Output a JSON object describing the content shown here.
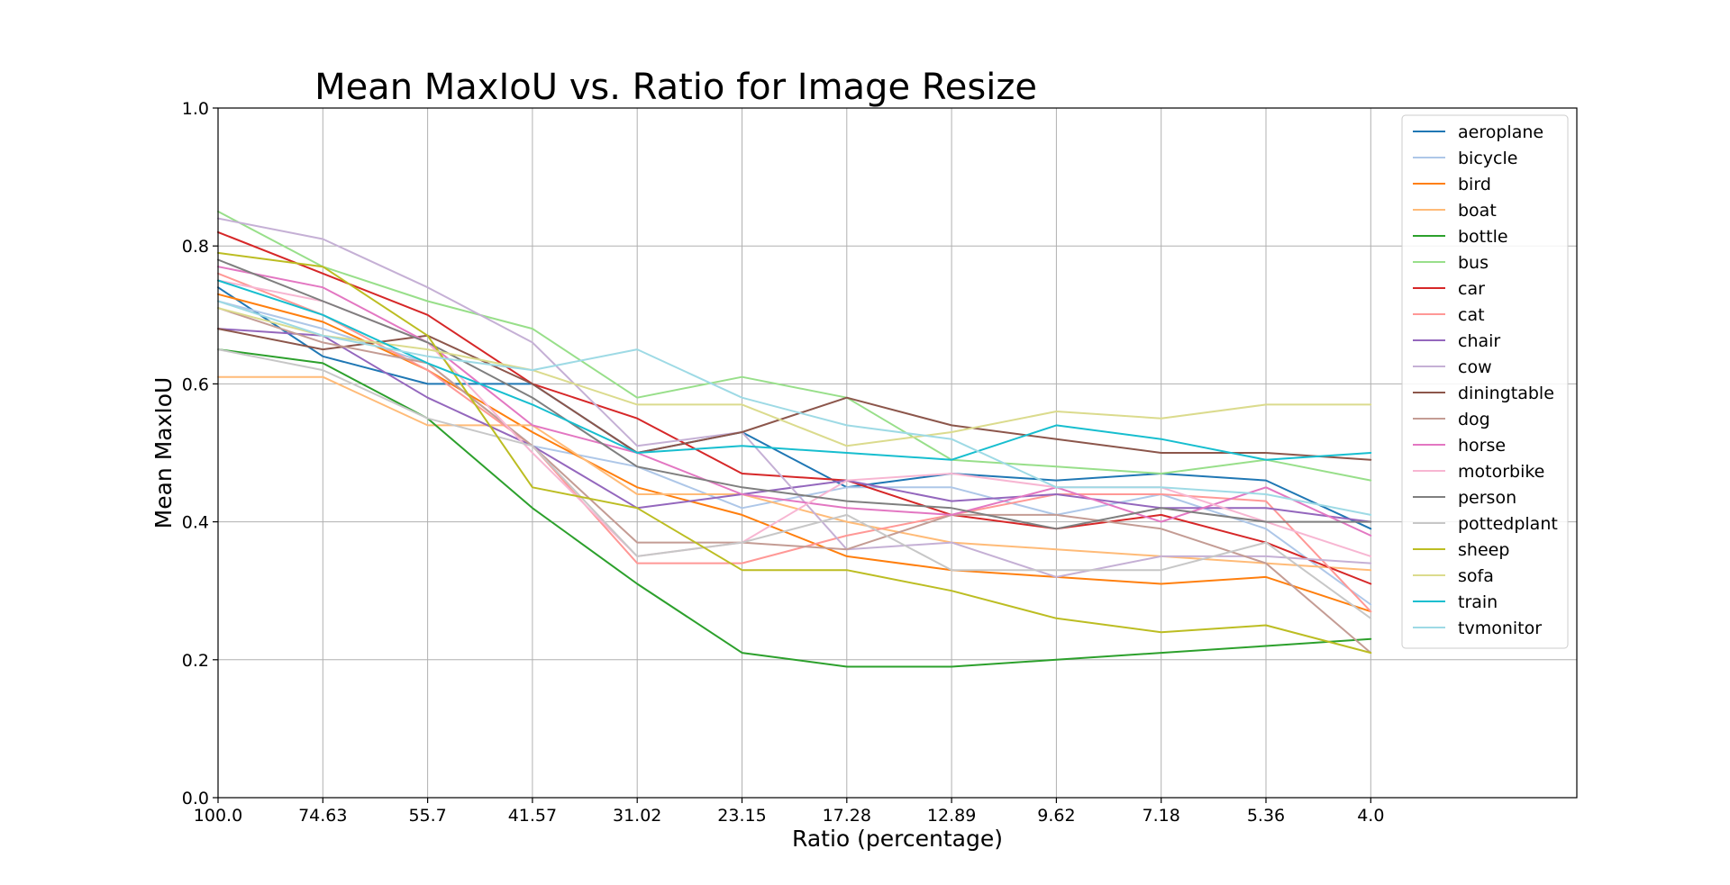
{
  "chart_data": {
    "type": "line",
    "title": "Mean MaxIoU vs. Ratio for Image Resize",
    "xlabel": "Ratio (percentage)",
    "ylabel": "Mean MaxIoU",
    "categories": [
      "100.0",
      "74.63",
      "55.7",
      "41.57",
      "31.02",
      "23.15",
      "17.28",
      "12.89",
      "9.62",
      "7.18",
      "5.36",
      "4.0"
    ],
    "ylim": [
      0.0,
      1.0
    ],
    "yticks": [
      "0.0",
      "0.2",
      "0.4",
      "0.6",
      "0.8",
      "1.0"
    ],
    "grid": true,
    "legend_position": "top-right",
    "series": [
      {
        "name": "aeroplane",
        "color": "#1f77b4",
        "values": [
          0.74,
          0.64,
          0.6,
          0.6,
          0.5,
          0.53,
          0.45,
          0.47,
          0.46,
          0.47,
          0.46,
          0.39
        ]
      },
      {
        "name": "bicycle",
        "color": "#aec7e8",
        "values": [
          0.72,
          0.68,
          0.63,
          0.51,
          0.48,
          0.42,
          0.45,
          0.45,
          0.41,
          0.44,
          0.39,
          0.28
        ]
      },
      {
        "name": "bird",
        "color": "#ff7f0e",
        "values": [
          0.73,
          0.69,
          0.62,
          0.53,
          0.45,
          0.41,
          0.35,
          0.33,
          0.32,
          0.31,
          0.32,
          0.27
        ]
      },
      {
        "name": "boat",
        "color": "#ffbb78",
        "values": [
          0.61,
          0.61,
          0.54,
          0.54,
          0.44,
          0.44,
          0.4,
          0.37,
          0.36,
          0.35,
          0.34,
          0.33
        ]
      },
      {
        "name": "bottle",
        "color": "#2ca02c",
        "values": [
          0.65,
          0.63,
          0.55,
          0.42,
          0.31,
          0.21,
          0.19,
          0.19,
          0.2,
          0.21,
          0.22,
          0.23
        ]
      },
      {
        "name": "bus",
        "color": "#98df8a",
        "values": [
          0.85,
          0.77,
          0.72,
          0.68,
          0.58,
          0.61,
          0.58,
          0.49,
          0.48,
          0.47,
          0.49,
          0.46
        ]
      },
      {
        "name": "car",
        "color": "#d62728",
        "values": [
          0.82,
          0.76,
          0.7,
          0.6,
          0.55,
          0.47,
          0.46,
          0.41,
          0.39,
          0.41,
          0.37,
          0.31
        ]
      },
      {
        "name": "cat",
        "color": "#ff9896",
        "values": [
          0.76,
          0.7,
          0.62,
          0.51,
          0.34,
          0.34,
          0.38,
          0.41,
          0.44,
          0.44,
          0.43,
          0.27
        ]
      },
      {
        "name": "chair",
        "color": "#9467bd",
        "values": [
          0.68,
          0.67,
          0.58,
          0.51,
          0.42,
          0.44,
          0.46,
          0.43,
          0.44,
          0.42,
          0.42,
          0.4
        ]
      },
      {
        "name": "cow",
        "color": "#c5b0d5",
        "values": [
          0.84,
          0.81,
          0.74,
          0.66,
          0.51,
          0.53,
          0.36,
          0.37,
          0.32,
          0.35,
          0.35,
          0.34
        ]
      },
      {
        "name": "diningtable",
        "color": "#8c564b",
        "values": [
          0.68,
          0.65,
          0.67,
          0.6,
          0.5,
          0.53,
          0.58,
          0.54,
          0.52,
          0.5,
          0.5,
          0.49
        ]
      },
      {
        "name": "dog",
        "color": "#c49c94",
        "values": [
          0.71,
          0.66,
          0.63,
          0.51,
          0.37,
          0.37,
          0.36,
          0.41,
          0.41,
          0.39,
          0.34,
          0.21
        ]
      },
      {
        "name": "horse",
        "color": "#e377c2",
        "values": [
          0.77,
          0.74,
          0.66,
          0.54,
          0.5,
          0.44,
          0.42,
          0.41,
          0.45,
          0.4,
          0.45,
          0.38
        ]
      },
      {
        "name": "motorbike",
        "color": "#f7b6d2",
        "values": [
          0.75,
          0.72,
          0.66,
          0.5,
          0.35,
          0.37,
          0.46,
          0.47,
          0.45,
          0.45,
          0.4,
          0.35
        ]
      },
      {
        "name": "person",
        "color": "#7f7f7f",
        "values": [
          0.78,
          0.72,
          0.66,
          0.58,
          0.48,
          0.45,
          0.43,
          0.42,
          0.39,
          0.42,
          0.4,
          0.4
        ]
      },
      {
        "name": "pottedplant",
        "color": "#c7c7c7",
        "values": [
          0.65,
          0.62,
          0.55,
          0.51,
          0.35,
          0.37,
          0.41,
          0.33,
          0.33,
          0.33,
          0.37,
          0.26
        ]
      },
      {
        "name": "sheep",
        "color": "#bcbd22",
        "values": [
          0.79,
          0.77,
          0.67,
          0.45,
          0.42,
          0.33,
          0.33,
          0.3,
          0.26,
          0.24,
          0.25,
          0.21
        ]
      },
      {
        "name": "sofa",
        "color": "#dbdb8d",
        "values": [
          0.71,
          0.67,
          0.65,
          0.62,
          0.57,
          0.57,
          0.51,
          0.53,
          0.56,
          0.55,
          0.57,
          0.57
        ]
      },
      {
        "name": "train",
        "color": "#17becf",
        "values": [
          0.75,
          0.7,
          0.63,
          0.57,
          0.5,
          0.51,
          0.5,
          0.49,
          0.54,
          0.52,
          0.49,
          0.5
        ]
      },
      {
        "name": "tvmonitor",
        "color": "#9edae5",
        "values": [
          0.72,
          0.67,
          0.64,
          0.62,
          0.65,
          0.58,
          0.54,
          0.52,
          0.45,
          0.45,
          0.44,
          0.41
        ]
      }
    ]
  }
}
